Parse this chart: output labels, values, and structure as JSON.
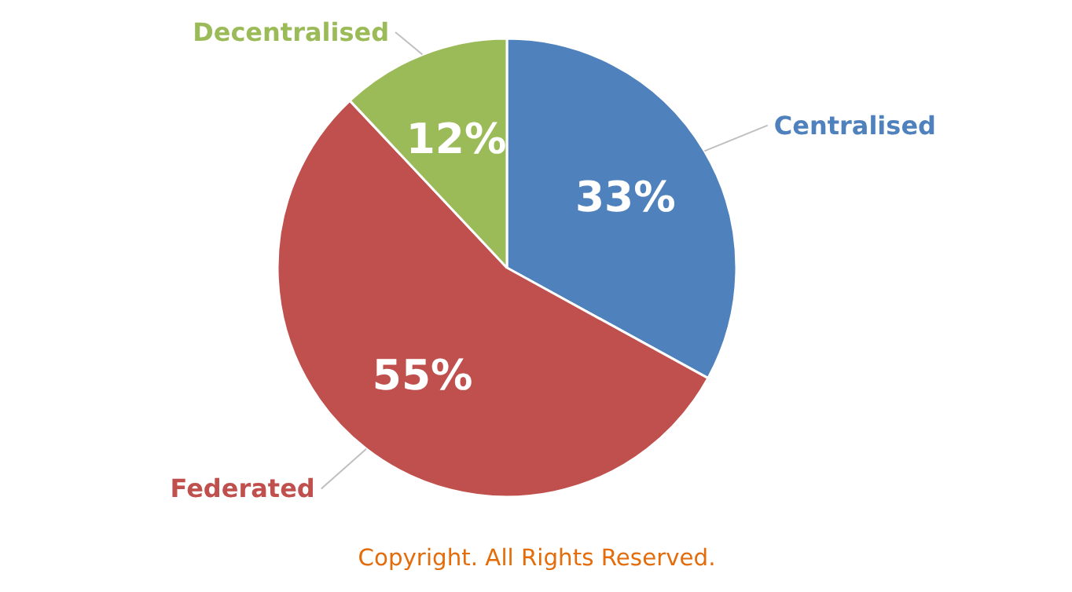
{
  "chart_data": {
    "type": "pie",
    "categories": [
      "Centralised",
      "Federated",
      "Decentralised"
    ],
    "values": [
      33,
      55,
      12
    ],
    "colors": [
      "#4f81bd",
      "#c0504d",
      "#9bbb59"
    ],
    "value_labels": [
      "33%",
      "55%",
      "12%"
    ],
    "annotations": [
      "Copyright. All Rights Reserved."
    ]
  }
}
